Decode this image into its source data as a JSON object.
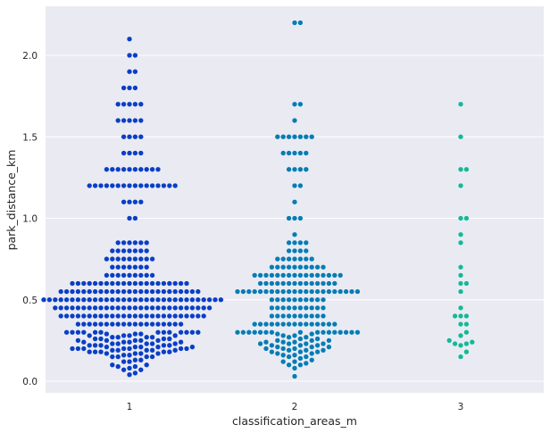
{
  "chart_data": {
    "type": "scatter",
    "subtype": "swarm",
    "xlabel": "classification_areas_m",
    "ylabel": "park_distance_km",
    "categories": [
      "1",
      "2",
      "3"
    ],
    "ylim": [
      -0.08,
      2.3
    ],
    "yticks": [
      0.0,
      0.5,
      1.0,
      1.5,
      2.0
    ],
    "ytick_labels": [
      "0.0",
      "0.5",
      "1.0",
      "1.5",
      "2.0"
    ],
    "grid": true,
    "background": "#eaeaf2",
    "colors": [
      "#0a3fc4",
      "#087cb4",
      "#14b898"
    ],
    "series": [
      {
        "category": "1",
        "values": [
          0.04,
          0.05,
          0.07,
          0.07,
          0.08,
          0.09,
          0.09,
          0.1,
          0.1,
          0.12,
          0.12,
          0.13,
          0.13,
          0.15,
          0.15,
          0.15,
          0.15,
          0.16,
          0.16,
          0.17,
          0.17,
          0.17,
          0.17,
          0.18,
          0.18,
          0.18,
          0.18,
          0.18,
          0.19,
          0.19,
          0.19,
          0.19,
          0.19,
          0.2,
          0.2,
          0.2,
          0.2,
          0.2,
          0.2,
          0.2,
          0.21,
          0.21,
          0.21,
          0.21,
          0.21,
          0.22,
          0.22,
          0.22,
          0.22,
          0.22,
          0.23,
          0.23,
          0.23,
          0.23,
          0.23,
          0.24,
          0.24,
          0.24,
          0.24,
          0.25,
          0.25,
          0.25,
          0.25,
          0.25,
          0.26,
          0.26,
          0.26,
          0.26,
          0.27,
          0.27,
          0.27,
          0.27,
          0.28,
          0.28,
          0.28,
          0.28,
          0.29,
          0.29,
          0.29,
          0.3,
          0.3,
          0.3,
          0.3,
          0.3,
          0.3,
          0.3,
          0.3,
          0.3,
          0.3,
          0.3,
          0.3,
          0.3,
          0.35,
          0.35,
          0.35,
          0.35,
          0.35,
          0.35,
          0.35,
          0.35,
          0.35,
          0.35,
          0.35,
          0.35,
          0.35,
          0.35,
          0.35,
          0.35,
          0.35,
          0.35,
          0.35,
          0.4,
          0.4,
          0.4,
          0.4,
          0.4,
          0.4,
          0.4,
          0.4,
          0.4,
          0.4,
          0.4,
          0.4,
          0.4,
          0.4,
          0.4,
          0.4,
          0.4,
          0.4,
          0.4,
          0.4,
          0.4,
          0.4,
          0.4,
          0.4,
          0.4,
          0.4,
          0.45,
          0.45,
          0.45,
          0.45,
          0.45,
          0.45,
          0.45,
          0.45,
          0.45,
          0.45,
          0.45,
          0.45,
          0.45,
          0.45,
          0.45,
          0.45,
          0.45,
          0.45,
          0.45,
          0.45,
          0.45,
          0.45,
          0.45,
          0.45,
          0.45,
          0.45,
          0.45,
          0.45,
          0.5,
          0.5,
          0.5,
          0.5,
          0.5,
          0.5,
          0.5,
          0.5,
          0.5,
          0.5,
          0.5,
          0.5,
          0.5,
          0.5,
          0.5,
          0.5,
          0.5,
          0.5,
          0.5,
          0.5,
          0.5,
          0.5,
          0.5,
          0.5,
          0.5,
          0.5,
          0.5,
          0.5,
          0.5,
          0.5,
          0.5,
          0.5,
          0.55,
          0.55,
          0.55,
          0.55,
          0.55,
          0.55,
          0.55,
          0.55,
          0.55,
          0.55,
          0.55,
          0.55,
          0.55,
          0.55,
          0.55,
          0.55,
          0.55,
          0.55,
          0.55,
          0.55,
          0.55,
          0.55,
          0.55,
          0.55,
          0.55,
          0.6,
          0.6,
          0.6,
          0.6,
          0.6,
          0.6,
          0.6,
          0.6,
          0.6,
          0.6,
          0.6,
          0.6,
          0.6,
          0.6,
          0.6,
          0.6,
          0.6,
          0.6,
          0.6,
          0.6,
          0.6,
          0.65,
          0.65,
          0.65,
          0.65,
          0.65,
          0.65,
          0.65,
          0.65,
          0.65,
          0.7,
          0.7,
          0.7,
          0.7,
          0.7,
          0.7,
          0.7,
          0.75,
          0.75,
          0.75,
          0.75,
          0.75,
          0.75,
          0.75,
          0.75,
          0.75,
          0.8,
          0.8,
          0.8,
          0.8,
          0.8,
          0.8,
          0.8,
          0.85,
          0.85,
          0.85,
          0.85,
          0.85,
          0.85,
          1.0,
          1.0,
          1.1,
          1.1,
          1.1,
          1.1,
          1.2,
          1.2,
          1.2,
          1.2,
          1.2,
          1.2,
          1.2,
          1.2,
          1.2,
          1.2,
          1.2,
          1.2,
          1.2,
          1.2,
          1.2,
          1.2,
          1.3,
          1.3,
          1.3,
          1.3,
          1.3,
          1.3,
          1.3,
          1.3,
          1.3,
          1.3,
          1.4,
          1.4,
          1.4,
          1.4,
          1.5,
          1.5,
          1.5,
          1.5,
          1.6,
          1.6,
          1.6,
          1.6,
          1.6,
          1.7,
          1.7,
          1.7,
          1.7,
          1.7,
          1.8,
          1.8,
          1.8,
          1.9,
          1.9,
          2.0,
          2.0,
          2.1
        ]
      },
      {
        "category": "2",
        "values": [
          0.03,
          0.08,
          0.1,
          0.1,
          0.11,
          0.12,
          0.12,
          0.13,
          0.14,
          0.15,
          0.15,
          0.16,
          0.16,
          0.17,
          0.17,
          0.18,
          0.18,
          0.18,
          0.19,
          0.19,
          0.19,
          0.2,
          0.2,
          0.2,
          0.21,
          0.21,
          0.21,
          0.22,
          0.22,
          0.22,
          0.23,
          0.23,
          0.23,
          0.23,
          0.24,
          0.24,
          0.24,
          0.25,
          0.25,
          0.25,
          0.26,
          0.26,
          0.27,
          0.27,
          0.28,
          0.28,
          0.29,
          0.29,
          0.3,
          0.3,
          0.3,
          0.3,
          0.3,
          0.3,
          0.3,
          0.3,
          0.3,
          0.3,
          0.3,
          0.3,
          0.3,
          0.3,
          0.3,
          0.3,
          0.35,
          0.35,
          0.35,
          0.35,
          0.35,
          0.35,
          0.35,
          0.35,
          0.35,
          0.35,
          0.35,
          0.35,
          0.35,
          0.35,
          0.35,
          0.4,
          0.4,
          0.4,
          0.4,
          0.4,
          0.4,
          0.4,
          0.4,
          0.4,
          0.4,
          0.45,
          0.45,
          0.45,
          0.45,
          0.45,
          0.45,
          0.45,
          0.45,
          0.45,
          0.45,
          0.5,
          0.5,
          0.5,
          0.5,
          0.5,
          0.5,
          0.5,
          0.5,
          0.5,
          0.5,
          0.55,
          0.55,
          0.55,
          0.55,
          0.55,
          0.55,
          0.55,
          0.55,
          0.55,
          0.55,
          0.55,
          0.55,
          0.55,
          0.55,
          0.55,
          0.55,
          0.55,
          0.55,
          0.55,
          0.55,
          0.55,
          0.55,
          0.6,
          0.6,
          0.6,
          0.6,
          0.6,
          0.6,
          0.6,
          0.6,
          0.6,
          0.6,
          0.6,
          0.6,
          0.6,
          0.6,
          0.65,
          0.65,
          0.65,
          0.65,
          0.65,
          0.65,
          0.65,
          0.65,
          0.65,
          0.65,
          0.65,
          0.65,
          0.65,
          0.65,
          0.65,
          0.65,
          0.7,
          0.7,
          0.7,
          0.7,
          0.7,
          0.7,
          0.7,
          0.7,
          0.7,
          0.7,
          0.75,
          0.75,
          0.75,
          0.75,
          0.75,
          0.75,
          0.75,
          0.8,
          0.8,
          0.8,
          0.8,
          0.85,
          0.85,
          0.85,
          0.85,
          0.9,
          1.0,
          1.0,
          1.0,
          1.1,
          1.2,
          1.2,
          1.3,
          1.3,
          1.3,
          1.3,
          1.4,
          1.4,
          1.4,
          1.4,
          1.4,
          1.5,
          1.5,
          1.5,
          1.5,
          1.5,
          1.5,
          1.5,
          1.6,
          1.7,
          1.7,
          2.2,
          2.2
        ]
      },
      {
        "category": "3",
        "values": [
          0.15,
          0.18,
          0.22,
          0.23,
          0.23,
          0.24,
          0.25,
          0.28,
          0.3,
          0.35,
          0.35,
          0.4,
          0.4,
          0.4,
          0.45,
          0.55,
          0.6,
          0.6,
          0.65,
          0.7,
          0.85,
          0.9,
          1.0,
          1.0,
          1.2,
          1.3,
          1.3,
          1.5,
          1.7
        ]
      }
    ]
  }
}
